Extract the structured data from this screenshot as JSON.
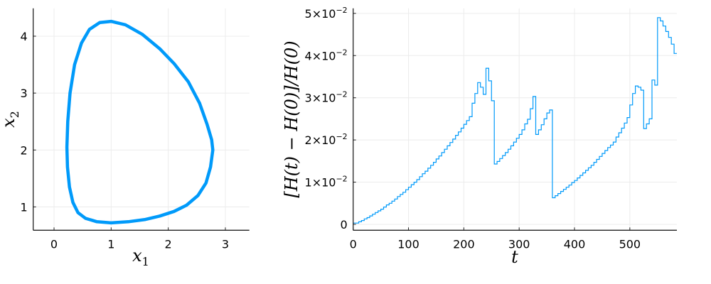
{
  "colors": {
    "series": "#009AFA",
    "axis": "#222222",
    "grid": "#ececec"
  },
  "chart_data": [
    {
      "type": "line",
      "xlabel": "x1",
      "ylabel": "x2",
      "xlim": [
        -0.365,
        3.42
      ],
      "ylim": [
        0.59,
        4.49
      ],
      "xticks": [
        0,
        1,
        2,
        3
      ],
      "yticks": [
        1,
        2,
        3,
        4
      ],
      "grid": true,
      "legend": "none",
      "x": [
        2.78,
        2.74,
        2.66,
        2.52,
        2.32,
        2.1,
        1.85,
        1.6,
        1.3,
        1.0,
        0.75,
        0.55,
        0.42,
        0.33,
        0.27,
        0.235,
        0.225,
        0.24,
        0.28,
        0.36,
        0.48,
        0.62,
        0.8,
        1.0,
        1.25,
        1.55,
        1.85,
        2.1,
        2.35,
        2.55,
        2.68,
        2.76,
        2.78
      ],
      "y": [
        2.0,
        1.7,
        1.42,
        1.2,
        1.03,
        0.92,
        0.84,
        0.78,
        0.74,
        0.72,
        0.74,
        0.8,
        0.9,
        1.08,
        1.35,
        1.7,
        2.05,
        2.5,
        3.0,
        3.5,
        3.88,
        4.12,
        4.24,
        4.26,
        4.2,
        4.03,
        3.78,
        3.52,
        3.2,
        2.82,
        2.45,
        2.18,
        2.0
      ]
    },
    {
      "type": "line",
      "step": true,
      "xlabel": "t",
      "ylabel": "[H(t) − H(0)]/H(0)",
      "xlim": [
        0,
        585
      ],
      "ylim": [
        -0.0014,
        0.0512
      ],
      "xticks": [
        0,
        100,
        200,
        300,
        400,
        500
      ],
      "yticks": [
        {
          "value": 0,
          "label": "0",
          "exp": ""
        },
        {
          "value": 0.01,
          "label": "1×10",
          "exp": "−2"
        },
        {
          "value": 0.02,
          "label": "2×10",
          "exp": "−2"
        },
        {
          "value": 0.03,
          "label": "3×10",
          "exp": "−2"
        },
        {
          "value": 0.04,
          "label": "4×10",
          "exp": "−2"
        },
        {
          "value": 0.05,
          "label": "5×10",
          "exp": "−2"
        }
      ],
      "grid": true,
      "legend": "none",
      "t_step": 5,
      "values": [
        0.0003,
        0.0003,
        0.0006,
        0.0009,
        0.0013,
        0.0016,
        0.002,
        0.0024,
        0.0028,
        0.0032,
        0.0036,
        0.0041,
        0.0046,
        0.005,
        0.0055,
        0.006,
        0.0066,
        0.0071,
        0.0076,
        0.0082,
        0.0088,
        0.0094,
        0.01,
        0.0106,
        0.0113,
        0.012,
        0.0126,
        0.0133,
        0.014,
        0.0147,
        0.0155,
        0.0162,
        0.017,
        0.0178,
        0.0186,
        0.0194,
        0.0202,
        0.0211,
        0.0219,
        0.0228,
        0.0237,
        0.0246,
        0.0255,
        0.0287,
        0.031,
        0.0336,
        0.0325,
        0.0308,
        0.037,
        0.034,
        0.0293,
        0.0143,
        0.0149,
        0.0156,
        0.0163,
        0.017,
        0.0178,
        0.0186,
        0.0195,
        0.0204,
        0.0213,
        0.0224,
        0.0238,
        0.0249,
        0.0274,
        0.0303,
        0.0213,
        0.0224,
        0.0236,
        0.025,
        0.0264,
        0.0271,
        0.0063,
        0.0068,
        0.0073,
        0.0078,
        0.0083,
        0.0088,
        0.0093,
        0.0099,
        0.0104,
        0.011,
        0.0116,
        0.0122,
        0.0128,
        0.0134,
        0.014,
        0.0147,
        0.0154,
        0.0161,
        0.0168,
        0.0175,
        0.0182,
        0.0188,
        0.0195,
        0.0207,
        0.0217,
        0.0228,
        0.024,
        0.0253,
        0.0283,
        0.031,
        0.0328,
        0.0325,
        0.0318,
        0.0227,
        0.0238,
        0.025,
        0.0342,
        0.033,
        0.049,
        0.0482,
        0.047,
        0.0457,
        0.0443,
        0.0427,
        0.0405
      ]
    }
  ]
}
